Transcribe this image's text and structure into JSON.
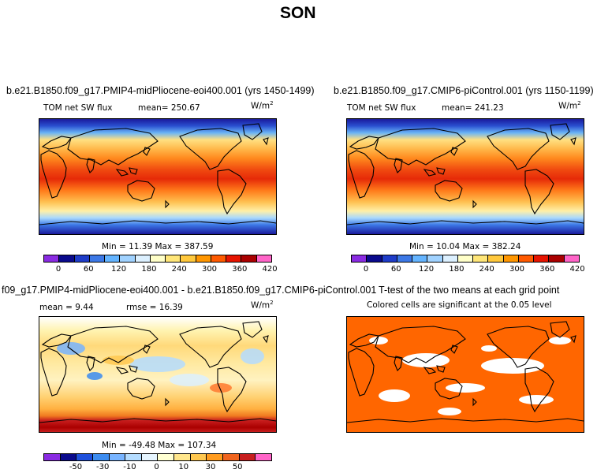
{
  "page_title": "SON",
  "units": "W/m",
  "units_sup": "2",
  "panel1": {
    "title": "b.e21.B1850.f09_g17.PMIP4-midPliocene-eoi400.001 (yrs 1450-1499)",
    "subtitle": "TOM net SW flux",
    "mean_label": "mean= 250.67",
    "minmax": "Min =  11.39 Max = 387.59",
    "cbar_ticks": [
      "0",
      "60",
      "120",
      "180",
      "240",
      "300",
      "360",
      "420"
    ]
  },
  "panel2": {
    "title": "b.e21.B1850.f09_g17.CMIP6-piControl.001 (yrs 1150-1199)",
    "subtitle": "TOM net SW flux",
    "mean_label": "mean= 241.23",
    "minmax": "Min =  10.04 Max = 382.24",
    "cbar_ticks": [
      "0",
      "60",
      "120",
      "180",
      "240",
      "300",
      "360",
      "420"
    ]
  },
  "panel3": {
    "title": "f09_g17.PMIP4-midPliocene-eoi400.001 - b.e21.B1850.f09_g17.CMIP6-piControl.001",
    "mean_label": "mean =    9.44",
    "rmse_label": "rmse =  16.39",
    "minmax": "Min = -49.48 Max = 107.34",
    "cbar_ticks": [
      "-50",
      "-30",
      "-10",
      "0",
      "10",
      "30",
      "50"
    ]
  },
  "panel4": {
    "title": "T-test of the two means at each grid point",
    "subtitle": "Colored cells are significant at the 0.05 level"
  },
  "colors": {
    "abs_scale": [
      "#8a2be2",
      "#0a0a8c",
      "#1e3cc8",
      "#3c78e6",
      "#64b4ff",
      "#a0d2ff",
      "#dcf0ff",
      "#ffffc8",
      "#ffe678",
      "#ffc83c",
      "#ff9600",
      "#ff5a00",
      "#e61400",
      "#aa0000",
      "#ff64c8"
    ],
    "diff_scale": [
      "#8a2be2",
      "#0a0a8c",
      "#1e50dc",
      "#3c8cf0",
      "#78b4ff",
      "#b4dcff",
      "#e6f5ff",
      "#ffffd2",
      "#ffe68c",
      "#ffc850",
      "#ff9b1e",
      "#f0641e",
      "#c81e1e",
      "#ff64c8"
    ],
    "significance": "#ff6600"
  }
}
